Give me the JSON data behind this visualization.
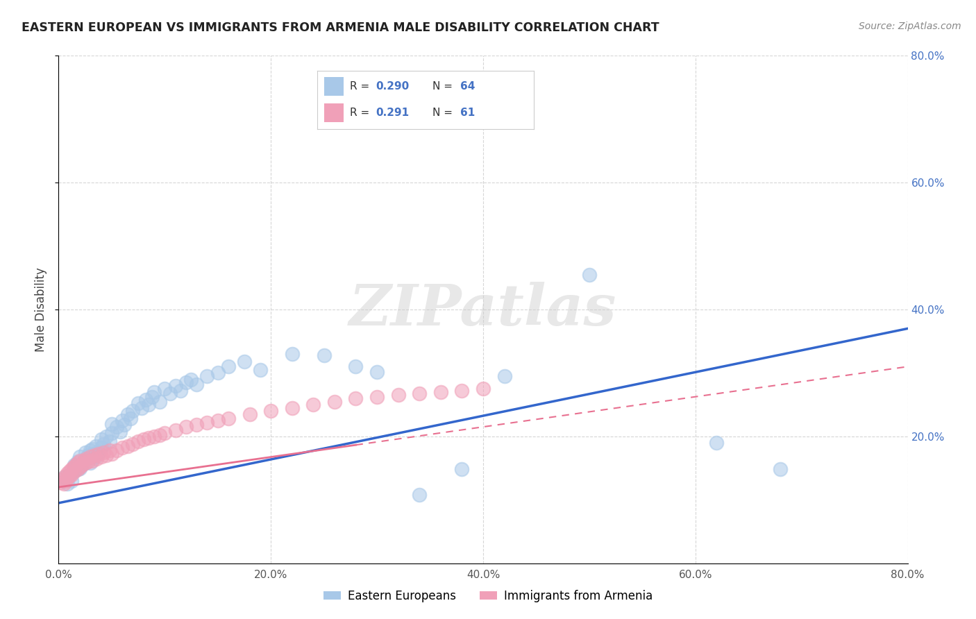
{
  "title": "EASTERN EUROPEAN VS IMMIGRANTS FROM ARMENIA MALE DISABILITY CORRELATION CHART",
  "source": "Source: ZipAtlas.com",
  "ylabel": "Male Disability",
  "xlim": [
    0.0,
    0.8
  ],
  "ylim": [
    0.0,
    0.8
  ],
  "xtick_vals": [
    0.0,
    0.2,
    0.4,
    0.6,
    0.8
  ],
  "xtick_labels": [
    "0.0%",
    "20.0%",
    "40.0%",
    "60.0%",
    "80.0%"
  ],
  "ytick_vals": [
    0.2,
    0.4,
    0.6,
    0.8
  ],
  "ytick_labels": [
    "20.0%",
    "40.0%",
    "60.0%",
    "80.0%"
  ],
  "watermark": "ZIPatlas",
  "legend_label_blue": "Eastern Europeans",
  "legend_label_pink": "Immigrants from Armenia",
  "blue_color": "#A8C8E8",
  "pink_color": "#F0A0B8",
  "trendline_blue": "#3366CC",
  "trendline_pink": "#E87090",
  "blue_r": "0.290",
  "blue_n": "64",
  "pink_r": "0.291",
  "pink_n": "61",
  "background_color": "#FFFFFF",
  "grid_color": "#BBBBBB",
  "blue_scatter_x": [
    0.005,
    0.008,
    0.01,
    0.012,
    0.015,
    0.015,
    0.018,
    0.018,
    0.02,
    0.02,
    0.022,
    0.025,
    0.025,
    0.028,
    0.03,
    0.03,
    0.032,
    0.033,
    0.035,
    0.035,
    0.038,
    0.04,
    0.04,
    0.042,
    0.045,
    0.048,
    0.05,
    0.05,
    0.055,
    0.058,
    0.06,
    0.062,
    0.065,
    0.068,
    0.07,
    0.075,
    0.078,
    0.082,
    0.085,
    0.088,
    0.09,
    0.095,
    0.1,
    0.105,
    0.11,
    0.115,
    0.12,
    0.125,
    0.13,
    0.14,
    0.15,
    0.16,
    0.175,
    0.19,
    0.22,
    0.25,
    0.28,
    0.3,
    0.34,
    0.38,
    0.42,
    0.5,
    0.62,
    0.68
  ],
  "blue_scatter_y": [
    0.135,
    0.125,
    0.14,
    0.13,
    0.145,
    0.155,
    0.148,
    0.16,
    0.15,
    0.168,
    0.155,
    0.165,
    0.175,
    0.17,
    0.158,
    0.178,
    0.18,
    0.172,
    0.185,
    0.168,
    0.175,
    0.182,
    0.195,
    0.188,
    0.2,
    0.192,
    0.205,
    0.22,
    0.215,
    0.208,
    0.225,
    0.218,
    0.235,
    0.228,
    0.24,
    0.252,
    0.245,
    0.258,
    0.25,
    0.262,
    0.27,
    0.255,
    0.275,
    0.268,
    0.28,
    0.272,
    0.285,
    0.29,
    0.282,
    0.295,
    0.3,
    0.31,
    0.318,
    0.305,
    0.33,
    0.328,
    0.31,
    0.302,
    0.108,
    0.148,
    0.295,
    0.455,
    0.19,
    0.148
  ],
  "pink_scatter_x": [
    0.002,
    0.004,
    0.005,
    0.006,
    0.007,
    0.008,
    0.008,
    0.01,
    0.01,
    0.012,
    0.012,
    0.014,
    0.015,
    0.016,
    0.018,
    0.018,
    0.02,
    0.02,
    0.022,
    0.024,
    0.025,
    0.026,
    0.028,
    0.03,
    0.032,
    0.034,
    0.036,
    0.038,
    0.04,
    0.042,
    0.045,
    0.048,
    0.05,
    0.055,
    0.06,
    0.065,
    0.07,
    0.075,
    0.08,
    0.085,
    0.09,
    0.095,
    0.1,
    0.11,
    0.12,
    0.13,
    0.14,
    0.15,
    0.16,
    0.18,
    0.2,
    0.22,
    0.24,
    0.26,
    0.28,
    0.3,
    0.32,
    0.34,
    0.36,
    0.38,
    0.4
  ],
  "pink_scatter_y": [
    0.128,
    0.132,
    0.125,
    0.138,
    0.13,
    0.142,
    0.135,
    0.145,
    0.138,
    0.148,
    0.14,
    0.152,
    0.145,
    0.155,
    0.148,
    0.158,
    0.152,
    0.162,
    0.155,
    0.162,
    0.158,
    0.165,
    0.16,
    0.168,
    0.162,
    0.17,
    0.165,
    0.172,
    0.168,
    0.175,
    0.17,
    0.178,
    0.172,
    0.178,
    0.182,
    0.185,
    0.188,
    0.192,
    0.195,
    0.198,
    0.2,
    0.202,
    0.205,
    0.21,
    0.215,
    0.218,
    0.222,
    0.225,
    0.228,
    0.235,
    0.24,
    0.245,
    0.25,
    0.255,
    0.26,
    0.262,
    0.265,
    0.268,
    0.27,
    0.272,
    0.275
  ],
  "blue_trend_x0": 0.0,
  "blue_trend_y0": 0.095,
  "blue_trend_x1": 0.8,
  "blue_trend_y1": 0.37,
  "pink_trend_x0": 0.0,
  "pink_trend_y0": 0.12,
  "pink_trend_x1": 0.8,
  "pink_trend_y1": 0.31
}
